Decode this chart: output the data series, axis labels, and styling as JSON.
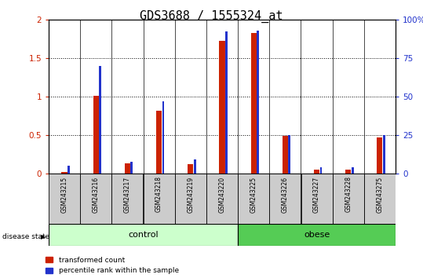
{
  "title": "GDS3688 / 1555324_at",
  "samples": [
    "GSM243215",
    "GSM243216",
    "GSM243217",
    "GSM243218",
    "GSM243219",
    "GSM243220",
    "GSM243225",
    "GSM243226",
    "GSM243227",
    "GSM243228",
    "GSM243275"
  ],
  "red_values": [
    0.02,
    1.01,
    0.13,
    0.82,
    0.12,
    1.72,
    1.82,
    0.49,
    0.05,
    0.05,
    0.47
  ],
  "blue_pct": [
    5,
    70,
    8,
    47,
    9.5,
    92,
    93,
    25,
    4,
    4,
    25
  ],
  "ylim_left": [
    0,
    2
  ],
  "ylim_right": [
    0,
    100
  ],
  "yticks_left": [
    0,
    0.5,
    1.0,
    1.5,
    2.0
  ],
  "yticks_right": [
    0,
    25,
    50,
    75,
    100
  ],
  "ytick_labels_left": [
    "0",
    "0.5",
    "1",
    "1.5",
    "2"
  ],
  "ytick_labels_right": [
    "0",
    "25",
    "50",
    "75",
    "100%"
  ],
  "control_indices": [
    0,
    1,
    2,
    3,
    4,
    5
  ],
  "obese_indices": [
    6,
    7,
    8,
    9,
    10
  ],
  "control_label": "control",
  "obese_label": "obese",
  "disease_state_label": "disease state",
  "legend_red": "transformed count",
  "legend_blue": "percentile rank within the sample",
  "red_color": "#cc2200",
  "blue_color": "#2233cc",
  "bar_bg": "#cccccc",
  "control_bg": "#ccffcc",
  "obese_bg": "#55cc55",
  "title_fontsize": 11,
  "red_bar_width": 0.18,
  "blue_bar_width": 0.07
}
